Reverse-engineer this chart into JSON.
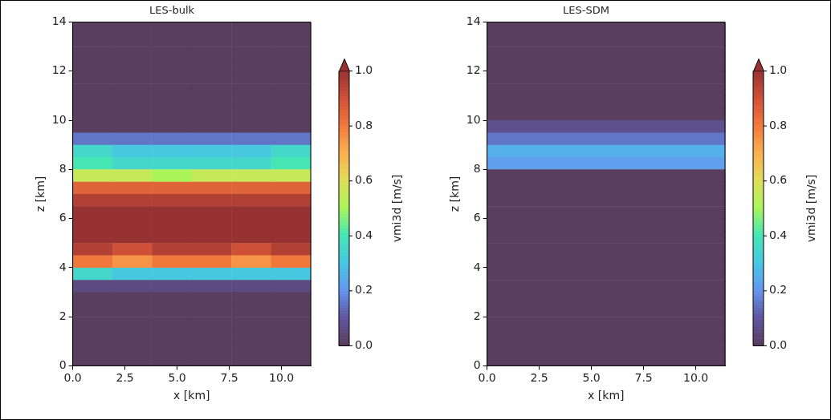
{
  "chart_data": [
    {
      "type": "heatmap",
      "title": "LES-bulk",
      "xlabel": "x [km]",
      "ylabel": "z [km]",
      "clabel": "vmi3d [m/s]",
      "xlim": [
        0,
        11.4
      ],
      "xticks": [
        {
          "value": 0,
          "label": "0.0"
        },
        {
          "value": 2.5,
          "label": "2.5"
        },
        {
          "value": 5,
          "label": "5.0"
        },
        {
          "value": 7.5,
          "label": "7.5"
        },
        {
          "value": 10,
          "label": "10.0"
        }
      ],
      "ylim": [
        0,
        14
      ],
      "yticks": [
        0,
        2,
        4,
        6,
        8,
        10,
        12,
        14
      ],
      "clim": [
        0,
        1
      ],
      "cticks": [
        {
          "value": 0,
          "label": "0.0"
        },
        {
          "value": 0.2,
          "label": "0.2"
        },
        {
          "value": 0.4,
          "label": "0.4"
        },
        {
          "value": 0.6,
          "label": "0.6"
        },
        {
          "value": 0.8,
          "label": "0.8"
        },
        {
          "value": 1,
          "label": "1.0"
        }
      ],
      "cells": [
        [
          0,
          0,
          0,
          0,
          0,
          0
        ],
        [
          0,
          0,
          0,
          0,
          0,
          0
        ],
        [
          0,
          0,
          0,
          0,
          0,
          0
        ],
        [
          0,
          0,
          0,
          0,
          0,
          0
        ],
        [
          0,
          0,
          0,
          0,
          0,
          0
        ],
        [
          0,
          0,
          0,
          0,
          0,
          0
        ],
        [
          0,
          0,
          0,
          0,
          0,
          0
        ],
        [
          0,
          0,
          0,
          0,
          0,
          0
        ],
        [
          0,
          0,
          0,
          0,
          0,
          0
        ],
        [
          0.15,
          0.15,
          0.15,
          0.15,
          0.15,
          0.15
        ],
        [
          0.35,
          0.3,
          0.3,
          0.3,
          0.3,
          0.35
        ],
        [
          0.4,
          0.35,
          0.35,
          0.35,
          0.35,
          0.4
        ],
        [
          0.55,
          0.55,
          0.5,
          0.55,
          0.55,
          0.55
        ],
        [
          0.85,
          0.85,
          0.85,
          0.85,
          0.85,
          0.85
        ],
        [
          0.95,
          0.95,
          0.95,
          0.95,
          0.95,
          0.95
        ],
        [
          1,
          1,
          1,
          1,
          1,
          1
        ],
        [
          1,
          1,
          1,
          1,
          1,
          1
        ],
        [
          1,
          1,
          1,
          1,
          1,
          1
        ],
        [
          0.95,
          0.9,
          0.95,
          0.95,
          0.9,
          0.95
        ],
        [
          0.8,
          0.75,
          0.8,
          0.8,
          0.75,
          0.8
        ],
        [
          0.35,
          0.3,
          0.3,
          0.3,
          0.3,
          0.3
        ],
        [
          0.05,
          0.05,
          0.05,
          0.05,
          0.05,
          0.05
        ],
        [
          0,
          0,
          0,
          0,
          0,
          0
        ],
        [
          0,
          0,
          0,
          0,
          0,
          0
        ],
        [
          0,
          0,
          0,
          0,
          0,
          0
        ],
        [
          0,
          0,
          0,
          0,
          0,
          0
        ],
        [
          0,
          0,
          0,
          0,
          0,
          0
        ],
        [
          0,
          0,
          0,
          0,
          0,
          0
        ]
      ]
    },
    {
      "type": "heatmap",
      "title": "LES-SDM",
      "xlabel": "x [km]",
      "ylabel": "z [km]",
      "clabel": "vmi3d [m/s]",
      "xlim": [
        0,
        11.4
      ],
      "xticks": [
        {
          "value": 0,
          "label": "0.0"
        },
        {
          "value": 2.5,
          "label": "2.5"
        },
        {
          "value": 5,
          "label": "5.0"
        },
        {
          "value": 7.5,
          "label": "7.5"
        },
        {
          "value": 10,
          "label": "10.0"
        }
      ],
      "ylim": [
        0,
        14
      ],
      "yticks": [
        0,
        2,
        4,
        6,
        8,
        10,
        12,
        14
      ],
      "clim": [
        0,
        1
      ],
      "cticks": [
        {
          "value": 0,
          "label": "0.0"
        },
        {
          "value": 0.2,
          "label": "0.2"
        },
        {
          "value": 0.4,
          "label": "0.4"
        },
        {
          "value": 0.6,
          "label": "0.6"
        },
        {
          "value": 0.8,
          "label": "0.8"
        },
        {
          "value": 1,
          "label": "1.0"
        }
      ],
      "cells": [
        [
          0
        ],
        [
          0
        ],
        [
          0
        ],
        [
          0
        ],
        [
          0
        ],
        [
          0
        ],
        [
          0
        ],
        [
          0
        ],
        [
          0.07
        ],
        [
          0.15
        ],
        [
          0.25
        ],
        [
          0.22
        ],
        [
          0
        ],
        [
          0
        ],
        [
          0
        ],
        [
          0
        ],
        [
          0
        ],
        [
          0
        ],
        [
          0
        ],
        [
          0
        ],
        [
          0
        ],
        [
          0
        ],
        [
          0
        ],
        [
          0
        ],
        [
          0
        ],
        [
          0
        ],
        [
          0
        ],
        [
          0
        ]
      ]
    }
  ]
}
